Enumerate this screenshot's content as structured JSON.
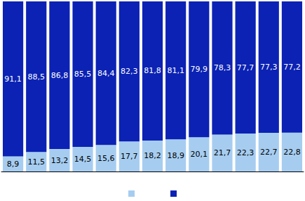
{
  "chart_data": {
    "type": "bar",
    "stacked": true,
    "data_labels": true,
    "tick_labels": false,
    "grid": false,
    "legend": "bottom",
    "categories": [
      null,
      null,
      null,
      null,
      null,
      null,
      null,
      null,
      null,
      null,
      null,
      null,
      null
    ],
    "ylim": [
      0,
      100
    ],
    "series": [
      {
        "color": "#a6cdf0",
        "values": [
          8.9,
          11.5,
          13.2,
          14.5,
          15.6,
          17.7,
          18.2,
          18.9,
          20.1,
          21.7,
          22.3,
          22.7,
          22.8
        ],
        "value_labels": [
          "8,9",
          "11,5",
          "13,2",
          "14,5",
          "15,6",
          "17,7",
          "18,2",
          "18,9",
          "20,1",
          "21,7",
          "22,3",
          "22,7",
          "22,8"
        ]
      },
      {
        "color": "#0b22b4",
        "values": [
          91.1,
          88.5,
          86.8,
          85.5,
          84.4,
          82.3,
          81.8,
          81.1,
          79.9,
          78.3,
          77.7,
          77.3,
          77.2
        ],
        "value_labels": [
          "91,1",
          "88,5",
          "86,8",
          "85,5",
          "84,4",
          "82,3",
          "81,8",
          "81,1",
          "79,9",
          "78,3",
          "77,7",
          "77,3",
          "77,2"
        ]
      }
    ]
  }
}
